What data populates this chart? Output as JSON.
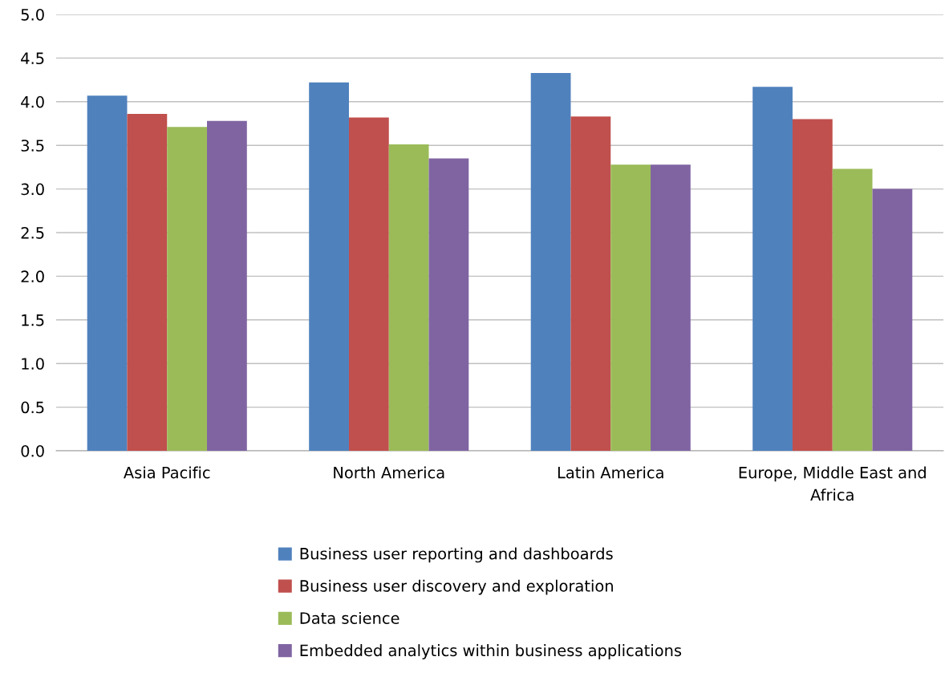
{
  "chart_data": {
    "type": "bar",
    "categories": [
      "Asia Pacific",
      "North America",
      "Latin America",
      "Europe, Middle East and Africa"
    ],
    "series": [
      {
        "name": "Business user reporting and dashboards",
        "color": "#4f81bd",
        "values": [
          4.07,
          4.22,
          4.33,
          4.17
        ]
      },
      {
        "name": "Business user discovery and exploration",
        "color": "#c0504d",
        "values": [
          3.86,
          3.82,
          3.83,
          3.8
        ]
      },
      {
        "name": "Data science",
        "color": "#9bbb59",
        "values": [
          3.71,
          3.51,
          3.28,
          3.23
        ]
      },
      {
        "name": "Embedded analytics within business applications",
        "color": "#8064a2",
        "values": [
          3.78,
          3.35,
          3.28,
          3.0
        ]
      }
    ],
    "ylim": [
      0,
      5
    ],
    "yticks": [
      {
        "value": 0,
        "label": "0.0"
      },
      {
        "value": 0.5,
        "label": "0.5"
      },
      {
        "value": 1,
        "label": "1.0"
      },
      {
        "value": 1.5,
        "label": "1.5"
      },
      {
        "value": 2,
        "label": "2.0"
      },
      {
        "value": 2.5,
        "label": "2.5"
      },
      {
        "value": 3,
        "label": "3.0"
      },
      {
        "value": 3.5,
        "label": "3.5"
      },
      {
        "value": 4,
        "label": "4.0"
      },
      {
        "value": 4.5,
        "label": "4.5"
      },
      {
        "value": 5,
        "label": "5.0"
      }
    ],
    "grid": "y",
    "legend": "bottom"
  }
}
